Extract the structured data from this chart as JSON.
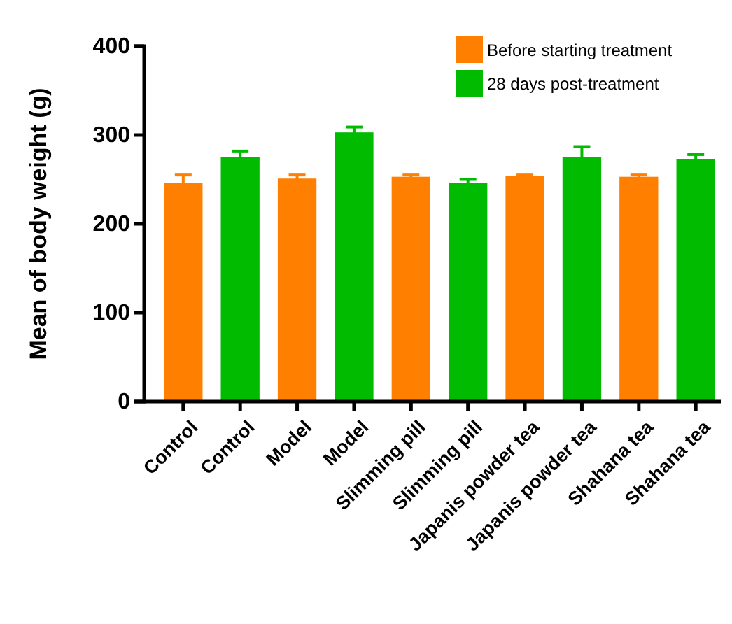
{
  "chart_data": {
    "type": "bar",
    "ylabel": "Mean of body weight (g)",
    "categories": [
      "Control",
      "Control",
      "Model",
      "Model",
      "Slimming pill",
      "Slimming pill",
      "Japanis powder tea",
      "Japanis powder tea",
      "Shahana tea",
      "Shahana tea"
    ],
    "series": [
      {
        "name": "Before starting treatment",
        "color": "#ff8000",
        "values": [
          246,
          null,
          251,
          null,
          253,
          null,
          254,
          null,
          253,
          null
        ],
        "errors": [
          9,
          null,
          4,
          null,
          2,
          null,
          1,
          null,
          2,
          null
        ]
      },
      {
        "name": "28 days post-treatment",
        "color": "#00bb00",
        "values": [
          null,
          275,
          null,
          303,
          null,
          246,
          null,
          275,
          null,
          273
        ],
        "errors": [
          null,
          7,
          null,
          6,
          null,
          4,
          null,
          12,
          null,
          5
        ]
      }
    ],
    "ylim": [
      0,
      400
    ],
    "yticks": [
      0,
      100,
      200,
      300,
      400
    ],
    "grid": false,
    "legend": "top right"
  }
}
